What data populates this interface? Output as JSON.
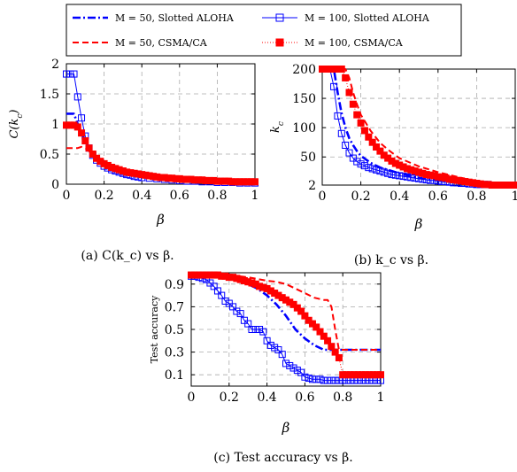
{
  "legend": [
    {
      "label": "M = 50, Slotted ALOHA",
      "color": "#0000ff",
      "dash": "9,3,2,3",
      "marker": "none",
      "width": 2.6
    },
    {
      "label": "M = 100, Slotted ALOHA",
      "color": "#0000ff",
      "dash": "",
      "marker": "square-open",
      "width": 1
    },
    {
      "label": "M = 50, CSMA/CA",
      "color": "#ff0000",
      "dash": "7,4",
      "marker": "none",
      "width": 2
    },
    {
      "label": "M = 100, CSMA/CA",
      "color": "#ff0000",
      "dash": "1,2",
      "marker": "square-filled",
      "width": 1
    }
  ],
  "chart_data": [
    {
      "type": "line",
      "ylabel": "C(k_c)",
      "xlabel": "β",
      "caption": "(a) C(k_c) vs β.",
      "xlim": [
        0,
        1
      ],
      "ylim": [
        0,
        2
      ],
      "xticks": [
        "0",
        "0.2",
        "0.4",
        "0.6",
        "0.8",
        "1"
      ],
      "yticks": [
        "0",
        "0.5",
        "1",
        "1.5",
        "2"
      ],
      "grid": true,
      "series": [
        {
          "name": "M = 50, Slotted ALOHA",
          "x": [
            0,
            0.02,
            0.04,
            0.06,
            0.08,
            0.1,
            0.12,
            0.14,
            0.16,
            0.2,
            0.25,
            0.3,
            0.4,
            0.5,
            0.6,
            0.7,
            0.8,
            0.9,
            1.0
          ],
          "y": [
            1.17,
            1.17,
            1.17,
            1.0,
            0.85,
            0.72,
            0.6,
            0.5,
            0.42,
            0.33,
            0.25,
            0.19,
            0.12,
            0.08,
            0.06,
            0.04,
            0.03,
            0.02,
            0.02
          ]
        },
        {
          "name": "M = 100, Slotted ALOHA",
          "x": [
            0,
            0.02,
            0.04,
            0.06,
            0.08,
            0.1,
            0.12,
            0.14,
            0.16,
            0.18,
            0.2,
            0.22,
            0.24,
            0.26,
            0.28,
            0.3,
            0.32,
            0.34,
            0.36,
            0.38,
            0.4,
            0.44,
            0.48,
            0.52,
            0.56,
            0.6,
            0.64,
            0.68,
            0.72,
            0.76,
            0.8,
            0.84,
            0.88,
            0.92,
            0.96,
            1.0
          ],
          "y": [
            1.83,
            1.83,
            1.83,
            1.45,
            1.1,
            0.8,
            0.6,
            0.48,
            0.4,
            0.35,
            0.3,
            0.27,
            0.24,
            0.22,
            0.2,
            0.18,
            0.16,
            0.15,
            0.13,
            0.12,
            0.11,
            0.1,
            0.09,
            0.08,
            0.07,
            0.06,
            0.05,
            0.05,
            0.04,
            0.04,
            0.03,
            0.03,
            0.03,
            0.02,
            0.02,
            0.02
          ]
        },
        {
          "name": "M = 50, CSMA/CA",
          "x": [
            0,
            0.02,
            0.04,
            0.06,
            0.08,
            0.1,
            0.12,
            0.14,
            0.16,
            0.2,
            0.25,
            0.3,
            0.4,
            0.5,
            0.6,
            0.7,
            0.8,
            0.9,
            1.0
          ],
          "y": [
            0.6,
            0.6,
            0.6,
            0.6,
            0.62,
            0.6,
            0.55,
            0.48,
            0.42,
            0.34,
            0.26,
            0.2,
            0.13,
            0.09,
            0.06,
            0.05,
            0.04,
            0.03,
            0.03
          ]
        },
        {
          "name": "M = 100, CSMA/CA",
          "x": [
            0,
            0.02,
            0.04,
            0.06,
            0.08,
            0.1,
            0.12,
            0.14,
            0.16,
            0.18,
            0.2,
            0.22,
            0.24,
            0.26,
            0.28,
            0.3,
            0.32,
            0.34,
            0.36,
            0.38,
            0.4,
            0.42,
            0.44,
            0.46,
            0.48,
            0.5,
            0.52,
            0.54,
            0.56,
            0.58,
            0.6,
            0.62,
            0.64,
            0.66,
            0.68,
            0.7,
            0.72,
            0.74,
            0.76,
            0.78,
            0.8,
            0.82,
            0.84,
            0.86,
            0.88,
            0.9,
            0.92,
            0.94,
            0.96,
            0.98,
            1.0
          ],
          "y": [
            0.98,
            0.98,
            0.98,
            0.95,
            0.85,
            0.72,
            0.6,
            0.5,
            0.43,
            0.38,
            0.34,
            0.31,
            0.28,
            0.26,
            0.24,
            0.22,
            0.2,
            0.19,
            0.18,
            0.17,
            0.16,
            0.15,
            0.14,
            0.13,
            0.12,
            0.11,
            0.11,
            0.1,
            0.1,
            0.09,
            0.09,
            0.08,
            0.08,
            0.08,
            0.07,
            0.07,
            0.07,
            0.06,
            0.06,
            0.06,
            0.05,
            0.05,
            0.05,
            0.05,
            0.04,
            0.04,
            0.04,
            0.04,
            0.04,
            0.04,
            0.04
          ]
        }
      ]
    },
    {
      "type": "line",
      "ylabel": "k_c",
      "xlabel": "β",
      "caption": "(b) k_c vs β.",
      "xlim": [
        0,
        1
      ],
      "ylim": [
        2,
        200
      ],
      "xticks": [
        "0",
        "0.2",
        "0.4",
        "0.6",
        "0.8",
        "1"
      ],
      "yticks": [
        "2",
        "50",
        "100",
        "150",
        "200"
      ],
      "grid": true,
      "series": [
        {
          "name": "M = 50, Slotted ALOHA",
          "x": [
            0,
            0.04,
            0.06,
            0.08,
            0.1,
            0.12,
            0.14,
            0.16,
            0.18,
            0.2,
            0.25,
            0.3,
            0.4,
            0.5,
            0.6,
            0.7,
            0.8,
            0.9,
            1.0
          ],
          "y": [
            200,
            200,
            200,
            160,
            125,
            100,
            82,
            70,
            60,
            52,
            40,
            32,
            22,
            14,
            10,
            6,
            3,
            2,
            2
          ]
        },
        {
          "name": "M = 100, Slotted ALOHA",
          "x": [
            0,
            0.02,
            0.04,
            0.06,
            0.08,
            0.1,
            0.12,
            0.14,
            0.16,
            0.18,
            0.2,
            0.22,
            0.24,
            0.26,
            0.28,
            0.3,
            0.32,
            0.34,
            0.36,
            0.38,
            0.4,
            0.42,
            0.44,
            0.46,
            0.48,
            0.5,
            0.52,
            0.54,
            0.56,
            0.58,
            0.6,
            0.62,
            0.64,
            0.66,
            0.68,
            0.7,
            0.72,
            0.74,
            0.76,
            0.78,
            0.8,
            0.82,
            0.84,
            0.86,
            0.88,
            0.9,
            0.92,
            0.94,
            0.96,
            0.98,
            1.0
          ],
          "y": [
            200,
            200,
            200,
            170,
            120,
            90,
            70,
            57,
            48,
            42,
            38,
            35,
            32,
            30,
            28,
            26,
            24,
            22,
            20,
            19,
            18,
            17,
            16,
            15,
            14,
            13,
            12,
            11,
            10,
            10,
            9,
            8,
            8,
            7,
            6,
            6,
            5,
            5,
            4,
            4,
            3,
            3,
            3,
            3,
            2,
            2,
            2,
            2,
            2,
            2,
            2
          ]
        },
        {
          "name": "M = 50, CSMA/CA",
          "x": [
            0,
            0.1,
            0.12,
            0.14,
            0.16,
            0.18,
            0.2,
            0.25,
            0.3,
            0.35,
            0.4,
            0.5,
            0.6,
            0.7,
            0.8,
            0.9,
            1.0
          ],
          "y": [
            200,
            200,
            200,
            185,
            160,
            140,
            122,
            95,
            74,
            60,
            48,
            34,
            24,
            16,
            8,
            3,
            2
          ]
        },
        {
          "name": "M = 100, CSMA/CA",
          "x": [
            0,
            0.02,
            0.04,
            0.06,
            0.08,
            0.1,
            0.12,
            0.14,
            0.16,
            0.18,
            0.2,
            0.22,
            0.24,
            0.26,
            0.28,
            0.3,
            0.32,
            0.34,
            0.36,
            0.38,
            0.4,
            0.42,
            0.44,
            0.46,
            0.48,
            0.5,
            0.52,
            0.54,
            0.56,
            0.58,
            0.6,
            0.62,
            0.64,
            0.66,
            0.68,
            0.7,
            0.72,
            0.74,
            0.76,
            0.78,
            0.8,
            0.82,
            0.84,
            0.86,
            0.88,
            0.9,
            0.92,
            0.94,
            0.96,
            0.98,
            1.0
          ],
          "y": [
            200,
            200,
            200,
            200,
            200,
            200,
            185,
            160,
            140,
            122,
            108,
            95,
            84,
            75,
            67,
            60,
            53,
            48,
            43,
            39,
            36,
            33,
            30,
            28,
            26,
            24,
            22,
            20,
            19,
            18,
            16,
            15,
            14,
            12,
            11,
            10,
            9,
            8,
            7,
            6,
            5,
            4,
            3,
            3,
            2,
            2,
            2,
            2,
            2,
            2,
            2
          ]
        }
      ]
    },
    {
      "type": "line",
      "ylabel": "Test accuracy",
      "xlabel": "β",
      "caption": "(c) Test accuracy vs β.",
      "xlim": [
        0,
        1
      ],
      "ylim": [
        0,
        1
      ],
      "xticks": [
        "0",
        "0.2",
        "0.4",
        "0.6",
        "0.8",
        "1"
      ],
      "yticks": [
        "0.1",
        "0.3",
        "0.5",
        "0.7",
        "0.9"
      ],
      "grid": true,
      "series": [
        {
          "name": "M = 50, Slotted ALOHA",
          "x": [
            0,
            0.05,
            0.1,
            0.15,
            0.2,
            0.25,
            0.3,
            0.35,
            0.4,
            0.45,
            0.5,
            0.55,
            0.6,
            0.65,
            0.7,
            0.75,
            0.8,
            0.85,
            0.9,
            0.95,
            1.0
          ],
          "y": [
            0.98,
            0.98,
            0.97,
            0.96,
            0.95,
            0.93,
            0.9,
            0.86,
            0.8,
            0.72,
            0.62,
            0.5,
            0.42,
            0.36,
            0.32,
            0.32,
            0.32,
            0.32,
            0.32,
            0.32,
            0.32
          ]
        },
        {
          "name": "M = 100, Slotted ALOHA",
          "x": [
            0,
            0.02,
            0.04,
            0.06,
            0.08,
            0.1,
            0.12,
            0.14,
            0.16,
            0.18,
            0.2,
            0.22,
            0.24,
            0.26,
            0.28,
            0.3,
            0.32,
            0.34,
            0.36,
            0.38,
            0.4,
            0.42,
            0.44,
            0.46,
            0.48,
            0.5,
            0.52,
            0.54,
            0.56,
            0.58,
            0.6,
            0.62,
            0.64,
            0.66,
            0.68,
            0.7,
            0.72,
            0.74,
            0.76,
            0.78,
            0.8,
            0.82,
            0.84,
            0.86,
            0.88,
            0.9,
            0.92,
            0.94,
            0.96,
            0.98,
            1.0
          ],
          "y": [
            0.97,
            0.97,
            0.96,
            0.95,
            0.94,
            0.91,
            0.88,
            0.84,
            0.8,
            0.75,
            0.73,
            0.7,
            0.66,
            0.64,
            0.58,
            0.55,
            0.5,
            0.5,
            0.5,
            0.48,
            0.4,
            0.36,
            0.34,
            0.32,
            0.28,
            0.2,
            0.18,
            0.16,
            0.14,
            0.12,
            0.08,
            0.07,
            0.06,
            0.06,
            0.06,
            0.05,
            0.05,
            0.05,
            0.05,
            0.05,
            0.05,
            0.05,
            0.05,
            0.05,
            0.05,
            0.05,
            0.05,
            0.05,
            0.05,
            0.05,
            0.05
          ]
        },
        {
          "name": "M = 50, CSMA/CA",
          "x": [
            0,
            0.1,
            0.2,
            0.3,
            0.4,
            0.45,
            0.5,
            0.55,
            0.6,
            0.65,
            0.7,
            0.72,
            0.74,
            0.76,
            0.78,
            0.8,
            0.85,
            0.9,
            0.95,
            1.0
          ],
          "y": [
            0.99,
            0.99,
            0.98,
            0.96,
            0.93,
            0.92,
            0.9,
            0.86,
            0.82,
            0.78,
            0.76,
            0.76,
            0.7,
            0.5,
            0.32,
            0.32,
            0.32,
            0.32,
            0.32,
            0.32
          ]
        },
        {
          "name": "M = 100, CSMA/CA",
          "x": [
            0,
            0.02,
            0.04,
            0.06,
            0.08,
            0.1,
            0.12,
            0.14,
            0.16,
            0.18,
            0.2,
            0.22,
            0.24,
            0.26,
            0.28,
            0.3,
            0.32,
            0.34,
            0.36,
            0.38,
            0.4,
            0.42,
            0.44,
            0.46,
            0.48,
            0.5,
            0.52,
            0.54,
            0.56,
            0.58,
            0.6,
            0.62,
            0.64,
            0.66,
            0.68,
            0.7,
            0.72,
            0.74,
            0.76,
            0.78,
            0.8,
            0.82,
            0.84,
            0.86,
            0.88,
            0.9,
            0.92,
            0.94,
            0.96,
            0.98,
            1.0
          ],
          "y": [
            0.98,
            0.98,
            0.98,
            0.98,
            0.98,
            0.98,
            0.98,
            0.98,
            0.97,
            0.97,
            0.96,
            0.96,
            0.95,
            0.94,
            0.93,
            0.92,
            0.91,
            0.9,
            0.88,
            0.87,
            0.86,
            0.84,
            0.82,
            0.8,
            0.78,
            0.76,
            0.74,
            0.72,
            0.69,
            0.66,
            0.62,
            0.58,
            0.55,
            0.52,
            0.48,
            0.44,
            0.4,
            0.35,
            0.3,
            0.25,
            0.1,
            0.1,
            0.1,
            0.1,
            0.1,
            0.1,
            0.1,
            0.1,
            0.1,
            0.1,
            0.1
          ]
        }
      ]
    }
  ]
}
